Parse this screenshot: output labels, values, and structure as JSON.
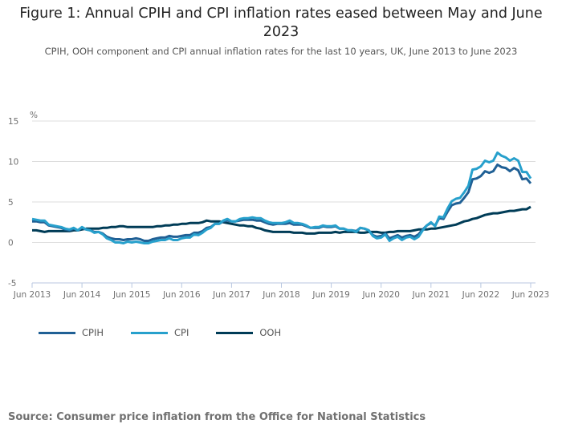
{
  "title": "Figure 1: Annual CPIH and CPI inflation rates eased between May and June 2023",
  "subtitle": "CPIH, OOH component and CPI annual inflation rates for the last 10 years, UK, June 2013 to June 2023",
  "source": "Source: Consumer price inflation from the Office for National Statistics",
  "colors": {
    "CPIH": "#206095",
    "CPI": "#27a0cc",
    "OOH": "#003c57"
  },
  "chart_data": {
    "type": "line",
    "title": "Figure 1: Annual CPIH and CPI inflation rates eased between May and June 2023",
    "ylabel": "%",
    "ylim": [
      -5,
      15
    ],
    "yticks": [
      "15",
      "10",
      "5",
      "0",
      "-5"
    ],
    "xstart": "Jun 2013",
    "xend": "Jun 2023",
    "frequency": "monthly",
    "xticks": [
      "Jun 2013",
      "Jun 2014",
      "Jun 2015",
      "Jun 2016",
      "Jun 2017",
      "Jun 2018",
      "Jun 2019",
      "Jun 2020",
      "Jun 2021",
      "Jun 2022",
      "Jun 2023"
    ],
    "grid": true,
    "legend_position": "bottom-left",
    "series": [
      {
        "name": "CPIH",
        "values": [
          2.6,
          2.6,
          2.5,
          2.5,
          2.1,
          2.0,
          1.9,
          1.8,
          1.6,
          1.5,
          1.7,
          1.5,
          1.8,
          1.6,
          1.5,
          1.3,
          1.3,
          1.1,
          0.7,
          0.5,
          0.4,
          0.4,
          0.3,
          0.4,
          0.4,
          0.5,
          0.4,
          0.2,
          0.2,
          0.4,
          0.5,
          0.6,
          0.6,
          0.8,
          0.7,
          0.7,
          0.8,
          0.9,
          0.9,
          1.2,
          1.2,
          1.4,
          1.8,
          1.9,
          2.3,
          2.3,
          2.6,
          2.7,
          2.6,
          2.6,
          2.7,
          2.8,
          2.8,
          2.8,
          2.7,
          2.7,
          2.5,
          2.3,
          2.2,
          2.3,
          2.3,
          2.3,
          2.4,
          2.2,
          2.2,
          2.2,
          2.0,
          1.8,
          1.8,
          1.8,
          2.0,
          1.9,
          1.9,
          2.0,
          1.7,
          1.7,
          1.5,
          1.5,
          1.4,
          1.8,
          1.7,
          1.5,
          0.9,
          0.7,
          0.8,
          1.1,
          0.5,
          0.7,
          0.9,
          0.6,
          0.8,
          0.9,
          0.7,
          1.0,
          1.6,
          2.1,
          2.4,
          2.1,
          3.0,
          2.9,
          3.8,
          4.6,
          4.8,
          4.9,
          5.5,
          6.2,
          7.8,
          7.9,
          8.2,
          8.8,
          8.6,
          8.8,
          9.6,
          9.3,
          9.2,
          8.8,
          9.2,
          8.9,
          7.8,
          7.9,
          7.3
        ]
      },
      {
        "name": "CPI",
        "values": [
          2.9,
          2.8,
          2.7,
          2.7,
          2.2,
          2.1,
          2.0,
          1.9,
          1.7,
          1.6,
          1.8,
          1.5,
          1.9,
          1.6,
          1.5,
          1.2,
          1.3,
          1.0,
          0.5,
          0.3,
          0.0,
          0.0,
          -0.1,
          0.1,
          0.0,
          0.1,
          0.0,
          -0.1,
          -0.1,
          0.1,
          0.2,
          0.3,
          0.3,
          0.5,
          0.3,
          0.3,
          0.5,
          0.6,
          0.6,
          1.0,
          0.9,
          1.2,
          1.6,
          1.8,
          2.3,
          2.3,
          2.7,
          2.9,
          2.6,
          2.6,
          2.9,
          3.0,
          3.0,
          3.1,
          3.0,
          3.0,
          2.7,
          2.5,
          2.4,
          2.4,
          2.4,
          2.5,
          2.7,
          2.4,
          2.4,
          2.3,
          2.1,
          1.8,
          1.9,
          1.9,
          2.1,
          2.0,
          2.0,
          2.1,
          1.7,
          1.7,
          1.5,
          1.5,
          1.3,
          1.8,
          1.7,
          1.5,
          0.8,
          0.5,
          0.6,
          1.0,
          0.2,
          0.5,
          0.7,
          0.3,
          0.6,
          0.7,
          0.4,
          0.7,
          1.5,
          2.1,
          2.5,
          2.0,
          3.2,
          3.1,
          4.2,
          5.1,
          5.4,
          5.5,
          6.2,
          7.0,
          9.0,
          9.1,
          9.4,
          10.1,
          9.9,
          10.1,
          11.1,
          10.7,
          10.5,
          10.1,
          10.4,
          10.1,
          8.7,
          8.7,
          7.9
        ]
      },
      {
        "name": "OOH",
        "values": [
          1.5,
          1.5,
          1.4,
          1.3,
          1.4,
          1.4,
          1.4,
          1.4,
          1.4,
          1.4,
          1.5,
          1.5,
          1.6,
          1.7,
          1.7,
          1.7,
          1.7,
          1.8,
          1.8,
          1.9,
          1.9,
          2.0,
          2.0,
          1.9,
          1.9,
          1.9,
          1.9,
          1.9,
          1.9,
          1.9,
          2.0,
          2.0,
          2.1,
          2.1,
          2.2,
          2.2,
          2.3,
          2.3,
          2.4,
          2.4,
          2.4,
          2.5,
          2.7,
          2.6,
          2.6,
          2.6,
          2.5,
          2.4,
          2.3,
          2.2,
          2.1,
          2.1,
          2.0,
          2.0,
          1.8,
          1.7,
          1.5,
          1.4,
          1.3,
          1.3,
          1.3,
          1.3,
          1.3,
          1.2,
          1.2,
          1.2,
          1.1,
          1.1,
          1.1,
          1.2,
          1.2,
          1.2,
          1.2,
          1.3,
          1.2,
          1.3,
          1.3,
          1.3,
          1.3,
          1.2,
          1.2,
          1.3,
          1.3,
          1.3,
          1.2,
          1.2,
          1.3,
          1.3,
          1.4,
          1.4,
          1.4,
          1.4,
          1.5,
          1.6,
          1.6,
          1.6,
          1.7,
          1.7,
          1.8,
          1.9,
          2.0,
          2.1,
          2.2,
          2.4,
          2.6,
          2.7,
          2.9,
          3.0,
          3.2,
          3.4,
          3.5,
          3.6,
          3.6,
          3.7,
          3.8,
          3.9,
          3.9,
          4.0,
          4.1,
          4.1,
          4.4
        ]
      }
    ]
  }
}
